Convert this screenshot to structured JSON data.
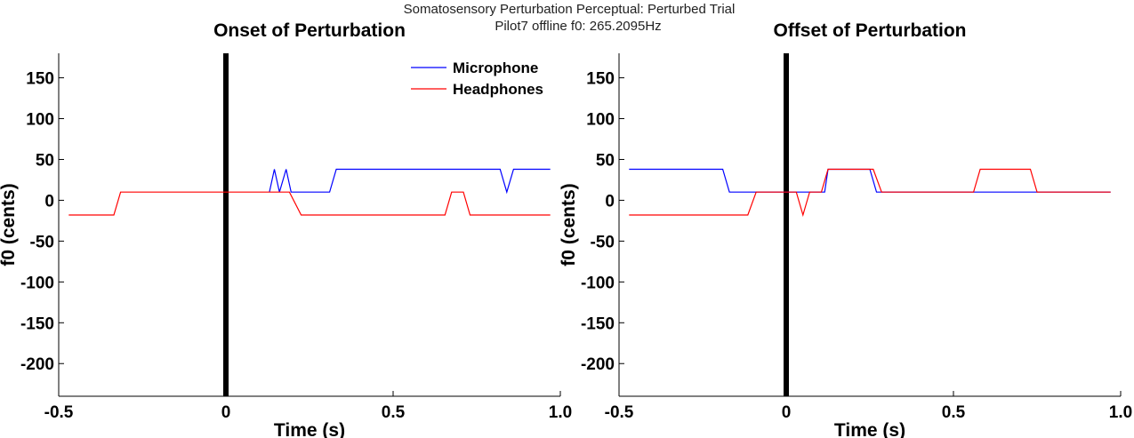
{
  "figure": {
    "title_line1": "Somatosensory Perturbation Perceptual: Perturbed Trial",
    "title_line2": "Pilot7 offline   f0: 265.2095Hz"
  },
  "colors": {
    "microphone": "#0000ff",
    "headphones": "#ff0000",
    "marker": "#000000"
  },
  "chart_data": [
    {
      "type": "line",
      "title": "Onset of Perturbation",
      "xlabel": "Time (s)",
      "ylabel": "f0 (cents)",
      "xlim": [
        -0.5,
        1.0
      ],
      "ylim": [
        -240,
        180
      ],
      "xticks": [
        -0.5,
        0,
        0.5,
        1.0
      ],
      "xtick_labels": [
        "-0.5",
        "0",
        "0.5",
        "1.0"
      ],
      "yticks": [
        150,
        100,
        50,
        0,
        -50,
        -100,
        -150,
        -200
      ],
      "ytick_labels": [
        "150",
        "100",
        "50",
        "0",
        "-50",
        "-100",
        "-150",
        "-200"
      ],
      "vline_x": 0,
      "legend": {
        "position": "top-right",
        "entries": [
          "Microphone",
          "Headphones"
        ]
      },
      "series": [
        {
          "name": "Microphone",
          "x": [
            0.13,
            0.145,
            0.16,
            0.18,
            0.195,
            0.31,
            0.33,
            0.82,
            0.84,
            0.86,
            0.97
          ],
          "y": [
            10,
            38,
            10,
            38,
            10,
            10,
            38,
            38,
            10,
            38,
            38
          ]
        },
        {
          "name": "Headphones",
          "x": [
            -0.47,
            -0.335,
            -0.315,
            0.19,
            0.225,
            0.655,
            0.675,
            0.71,
            0.73,
            0.97
          ],
          "y": [
            -18,
            -18,
            10,
            10,
            -18,
            -18,
            10,
            10,
            -18,
            -18
          ]
        }
      ]
    },
    {
      "type": "line",
      "title": "Offset of Perturbation",
      "xlabel": "Time (s)",
      "ylabel": "f0 (cents)",
      "xlim": [
        -0.5,
        1.0
      ],
      "ylim": [
        -240,
        180
      ],
      "xticks": [
        -0.5,
        0,
        0.5,
        1.0
      ],
      "xtick_labels": [
        "-0.5",
        "0",
        "0.5",
        "1.0"
      ],
      "yticks": [
        150,
        100,
        50,
        0,
        -50,
        -100,
        -150,
        -200
      ],
      "ytick_labels": [
        "150",
        "100",
        "50",
        "0",
        "-50",
        "-100",
        "-150",
        "-200"
      ],
      "vline_x": 0,
      "series": [
        {
          "name": "Microphone",
          "x": [
            -0.47,
            -0.19,
            -0.17,
            -0.09,
            0.07,
            0.115,
            0.125,
            0.25,
            0.27,
            0.97
          ],
          "y": [
            38,
            38,
            10,
            10,
            10,
            10,
            38,
            38,
            10,
            10
          ]
        },
        {
          "name": "Headphones",
          "x": [
            -0.47,
            -0.115,
            -0.09,
            0.03,
            0.05,
            0.07,
            0.105,
            0.125,
            0.26,
            0.285,
            0.56,
            0.58,
            0.73,
            0.75,
            0.97
          ],
          "y": [
            -18,
            -18,
            10,
            10,
            -18,
            10,
            10,
            38,
            38,
            10,
            10,
            38,
            38,
            10,
            10
          ]
        }
      ]
    }
  ]
}
